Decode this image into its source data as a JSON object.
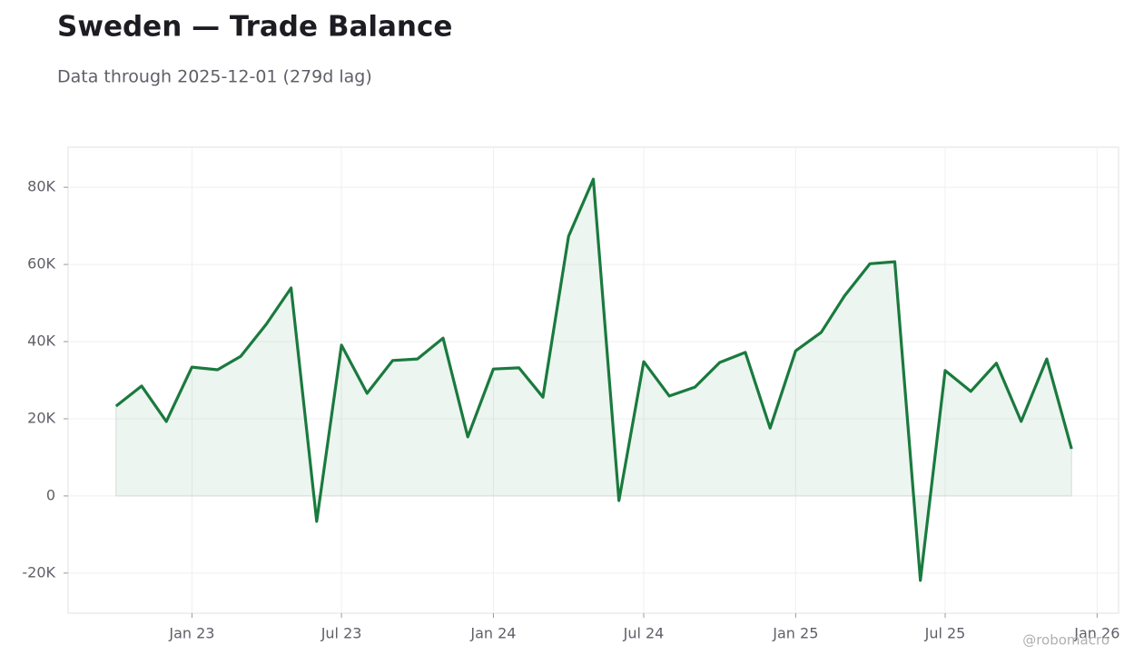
{
  "chart_data": {
    "type": "line",
    "title": "Sweden — Trade Balance",
    "subtitle": "Data through 2025-12-01 (279d lag)",
    "watermark": "@robomacro",
    "x": [
      "2022-10",
      "2022-11",
      "2022-12",
      "2023-01",
      "2023-02",
      "2023-03",
      "2023-04",
      "2023-05",
      "2023-06",
      "2023-07",
      "2023-08",
      "2023-09",
      "2023-10",
      "2023-11",
      "2023-12",
      "2024-01",
      "2024-02",
      "2024-03",
      "2024-04",
      "2024-05",
      "2024-06",
      "2024-07",
      "2024-08",
      "2024-09",
      "2024-10",
      "2024-11",
      "2024-12",
      "2025-01",
      "2025-02",
      "2025-03",
      "2025-04",
      "2025-05",
      "2025-06",
      "2025-07",
      "2025-08",
      "2025-09",
      "2025-10",
      "2025-11",
      "2025-12"
    ],
    "series": [
      {
        "name": "Trade Balance",
        "color": "#1a7a3e",
        "values": [
          23300,
          28500,
          19300,
          33400,
          32700,
          36200,
          44500,
          53900,
          -6600,
          39100,
          26600,
          35100,
          35500,
          40900,
          15300,
          32900,
          33200,
          25600,
          67300,
          82100,
          -1200,
          34800,
          25900,
          28200,
          34600,
          37200,
          17600,
          37600,
          42400,
          51800,
          60200,
          60700,
          -21900,
          32500,
          27100,
          34400,
          19300,
          35500,
          12200
        ]
      }
    ],
    "xlim": [
      "2022-08-04",
      "2026-01-27"
    ],
    "xticks": [
      {
        "value": "2023-01",
        "label": "Jan 23"
      },
      {
        "value": "2023-07",
        "label": "Jul 23"
      },
      {
        "value": "2024-01",
        "label": "Jan 24"
      },
      {
        "value": "2024-07",
        "label": "Jul 24"
      },
      {
        "value": "2025-01",
        "label": "Jan 25"
      },
      {
        "value": "2025-07",
        "label": "Jul 25"
      },
      {
        "value": "2026-01",
        "label": "Jan 26"
      }
    ],
    "ylim": [
      -30400,
      90400
    ],
    "yticks": [
      {
        "value": -20000,
        "label": "-20K"
      },
      0,
      {
        "value": 20000,
        "label": "20K"
      },
      {
        "value": 40000,
        "label": "40K"
      },
      {
        "value": 60000,
        "label": "60K"
      },
      {
        "value": 80000,
        "label": "80K"
      }
    ],
    "grid": true,
    "area": true
  }
}
